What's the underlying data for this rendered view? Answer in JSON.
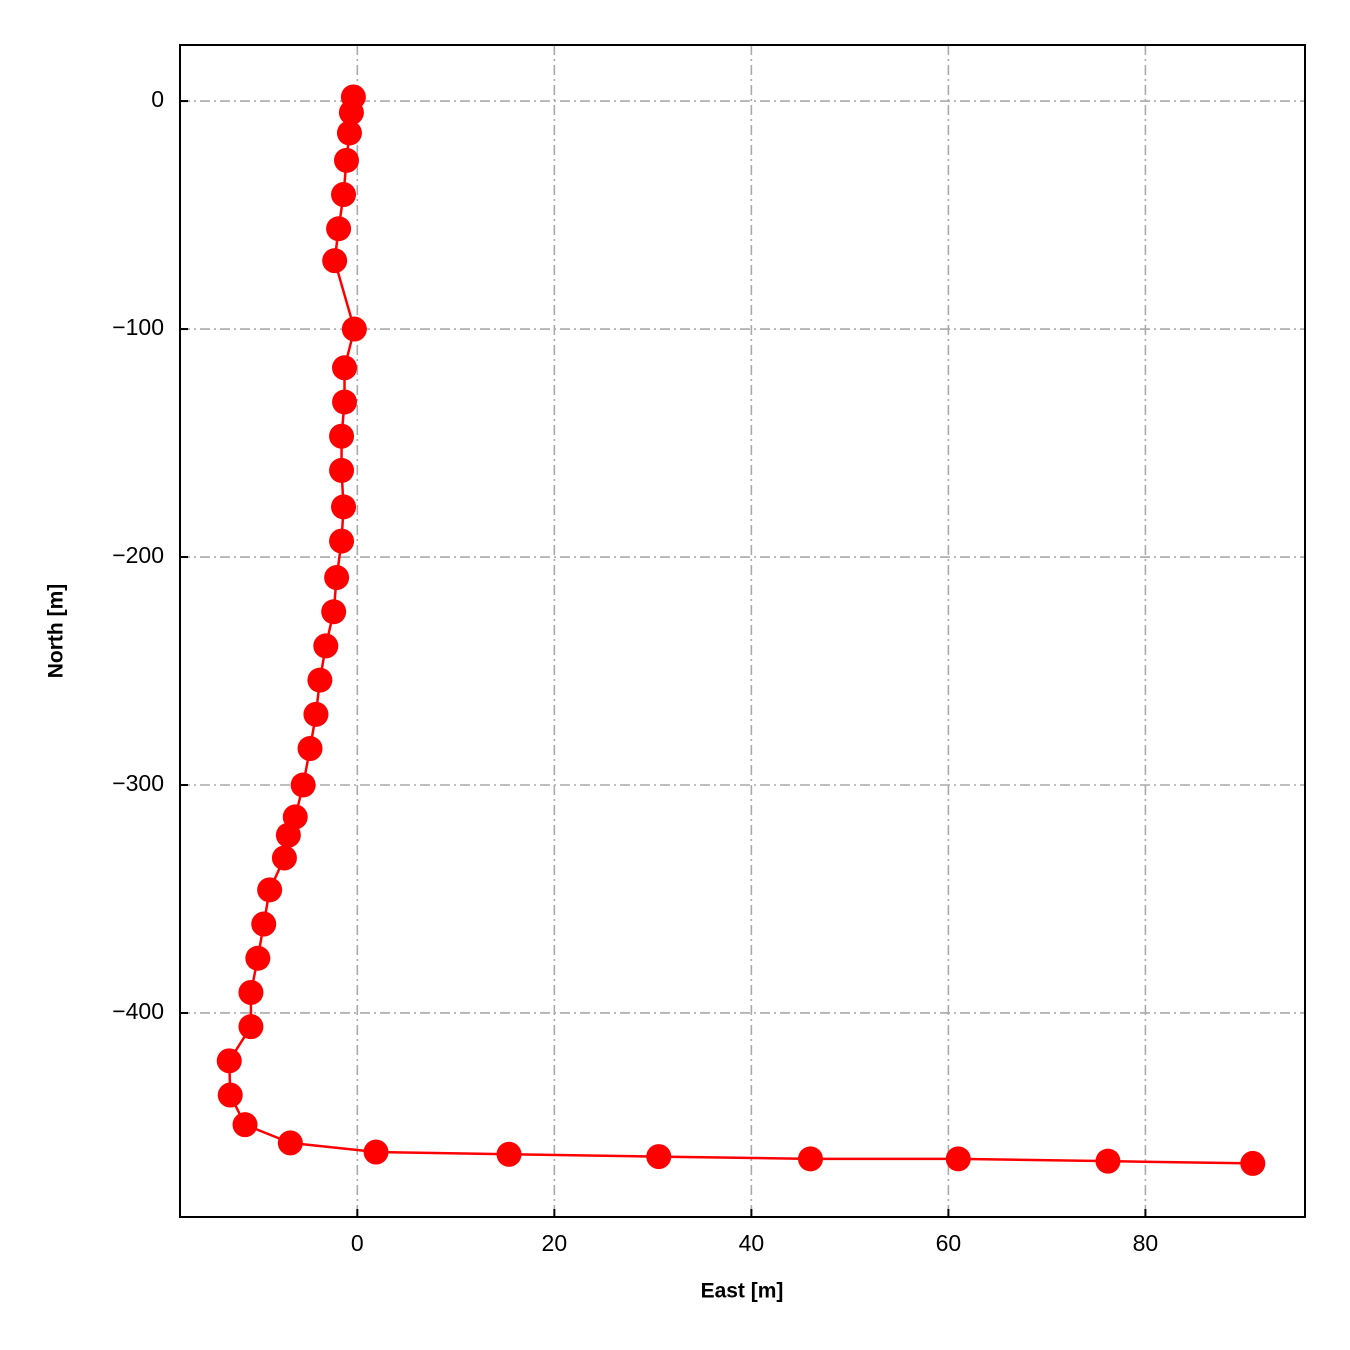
{
  "chart_data": {
    "type": "line",
    "x_label": "East [m]",
    "y_label": "North [m]",
    "xlim": [
      -18,
      96.2
    ],
    "ylim": [
      -489.5,
      24.6
    ],
    "xticks": [
      0,
      20,
      40,
      60,
      80
    ],
    "yticks": [
      0,
      {
        "value": -100,
        "label": "−100"
      },
      {
        "value": -200,
        "label": "−200"
      },
      {
        "value": -300,
        "label": "−300"
      },
      {
        "value": -400,
        "label": "−400"
      }
    ],
    "grid": true,
    "series": [
      {
        "color": "#ff0000",
        "x": [
          -0.4,
          -0.6,
          -0.8,
          -1.1,
          -1.4,
          -1.9,
          -2.3,
          -0.3,
          -1.3,
          -1.3,
          -1.6,
          -1.6,
          -1.4,
          -1.6,
          -2.1,
          -2.4,
          -3.2,
          -3.8,
          -4.2,
          -4.8,
          -5.5,
          -6.3,
          -7.0,
          -7.4,
          -8.9,
          -9.5,
          -10.1,
          -10.8,
          -10.8,
          -13.0,
          -12.9,
          -11.4,
          -6.8,
          1.9,
          15.4,
          30.6,
          46.0,
          61.0,
          76.2,
          90.9
        ],
        "values": [
          1.8,
          -5,
          -14,
          -26,
          -41,
          -56,
          -70,
          -100,
          -117,
          -132,
          -147,
          -162,
          -178,
          -193,
          -209,
          -224,
          -239,
          -254,
          -269,
          -284,
          -300,
          -314,
          -322,
          -332,
          -346,
          -361,
          -376,
          -391,
          -406,
          -421,
          -436,
          -449,
          -457,
          -461,
          -462,
          -463,
          -464,
          -464,
          -465,
          -466
        ]
      }
    ]
  }
}
